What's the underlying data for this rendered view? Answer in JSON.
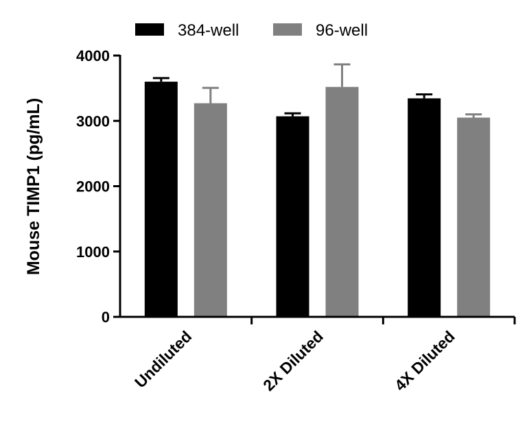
{
  "chart_data": {
    "type": "bar",
    "title": "",
    "xlabel": "",
    "ylabel": "Mouse TIMP1 (pg/mL)",
    "categories": [
      "Undiluted",
      "2X Diluted",
      "4X Diluted"
    ],
    "series": [
      {
        "name": "384-well",
        "color": "#000000",
        "values": [
          3600,
          3070,
          3345
        ],
        "errors": [
          55,
          45,
          60
        ]
      },
      {
        "name": "96-well",
        "color": "#808080",
        "values": [
          3270,
          3520,
          3050
        ],
        "errors": [
          235,
          345,
          50
        ]
      }
    ],
    "ylim": [
      0,
      4000
    ],
    "yticks": [
      0,
      1000,
      2000,
      3000,
      4000
    ],
    "grid": false,
    "legend": "top"
  }
}
